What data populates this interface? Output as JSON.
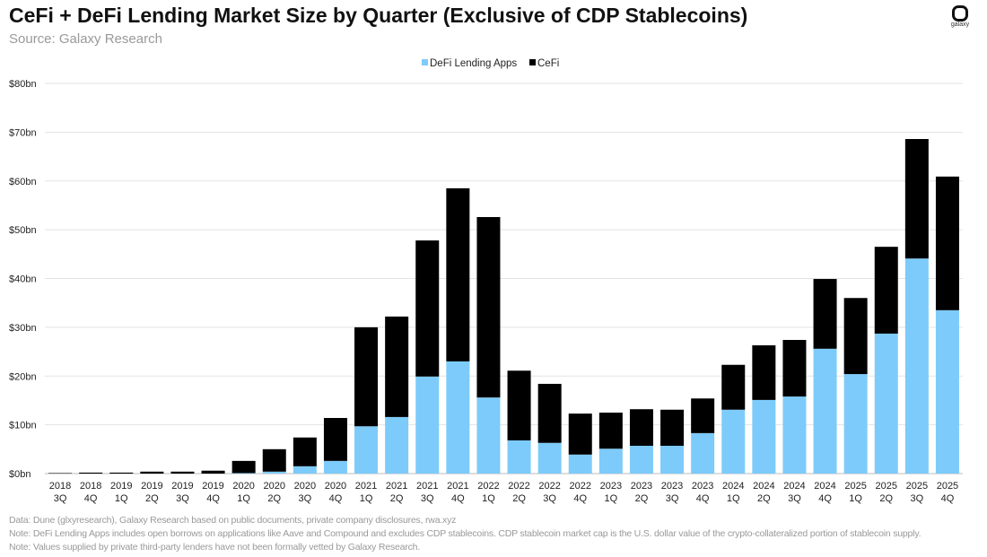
{
  "header": {
    "title": "CeFi + DeFi Lending Market Size by Quarter (Exclusive of CDP Stablecoins)",
    "subtitle": "Source: Galaxy Research",
    "logo_text": "galaxy"
  },
  "notes": [
    "Data: Dune (glxyresearch), Galaxy Research based on public documents, private company disclosures, rwa.xyz",
    "Note: DeFi Lending Apps includes open borrows on applications like Aave and Compound and excludes CDP stablecoins. CDP stablecoin market cap is the U.S. dollar value of the crypto-collateralized portion of stablecoin supply.",
    "Note: Values supplied by private third-party lenders have not been formally vetted  by Galaxy Research."
  ],
  "chart_data": {
    "type": "bar",
    "stacked": true,
    "title": "CeFi + DeFi Lending Market Size by Quarter (Exclusive of CDP Stablecoins)",
    "xlabel": "",
    "ylabel": "",
    "ylim": [
      0,
      80
    ],
    "grid": true,
    "legend": "top-center",
    "yticks": [
      "$0bn",
      "$10bn",
      "$20bn",
      "$30bn",
      "$40bn",
      "$50bn",
      "$60bn",
      "$70bn",
      "$80bn"
    ],
    "categories": [
      [
        "2018",
        "3Q"
      ],
      [
        "2018",
        "4Q"
      ],
      [
        "2019",
        "1Q"
      ],
      [
        "2019",
        "2Q"
      ],
      [
        "2019",
        "3Q"
      ],
      [
        "2019",
        "4Q"
      ],
      [
        "2020",
        "1Q"
      ],
      [
        "2020",
        "2Q"
      ],
      [
        "2020",
        "3Q"
      ],
      [
        "2020",
        "4Q"
      ],
      [
        "2021",
        "1Q"
      ],
      [
        "2021",
        "2Q"
      ],
      [
        "2021",
        "3Q"
      ],
      [
        "2021",
        "4Q"
      ],
      [
        "2022",
        "1Q"
      ],
      [
        "2022",
        "2Q"
      ],
      [
        "2022",
        "3Q"
      ],
      [
        "2022",
        "4Q"
      ],
      [
        "2023",
        "1Q"
      ],
      [
        "2023",
        "2Q"
      ],
      [
        "2023",
        "3Q"
      ],
      [
        "2023",
        "4Q"
      ],
      [
        "2024",
        "1Q"
      ],
      [
        "2024",
        "2Q"
      ],
      [
        "2024",
        "3Q"
      ],
      [
        "2024",
        "4Q"
      ],
      [
        "2025",
        "1Q"
      ],
      [
        "2025",
        "2Q"
      ],
      [
        "2025",
        "3Q"
      ],
      [
        "2025",
        "4Q"
      ]
    ],
    "series": [
      {
        "name": "DeFi Lending Apps",
        "color": "#7dcbfa",
        "values": [
          0,
          0,
          0,
          0,
          0,
          0,
          0.1,
          0.4,
          1.5,
          2.6,
          9.7,
          11.6,
          19.9,
          23.0,
          15.6,
          6.8,
          6.3,
          3.9,
          5.1,
          5.7,
          5.7,
          8.3,
          13.1,
          15.1,
          15.8,
          25.6,
          20.4,
          28.7,
          44.1,
          33.5
        ]
      },
      {
        "name": "CeFi",
        "color": "#000000",
        "values": [
          0.1,
          0.2,
          0.2,
          0.4,
          0.4,
          0.6,
          2.5,
          4.6,
          5.9,
          8.8,
          20.3,
          20.6,
          27.9,
          35.5,
          37.0,
          14.3,
          12.1,
          8.4,
          7.4,
          7.5,
          7.4,
          7.1,
          9.2,
          11.2,
          11.6,
          14.3,
          15.6,
          17.8,
          24.5,
          27.4
        ]
      }
    ]
  }
}
